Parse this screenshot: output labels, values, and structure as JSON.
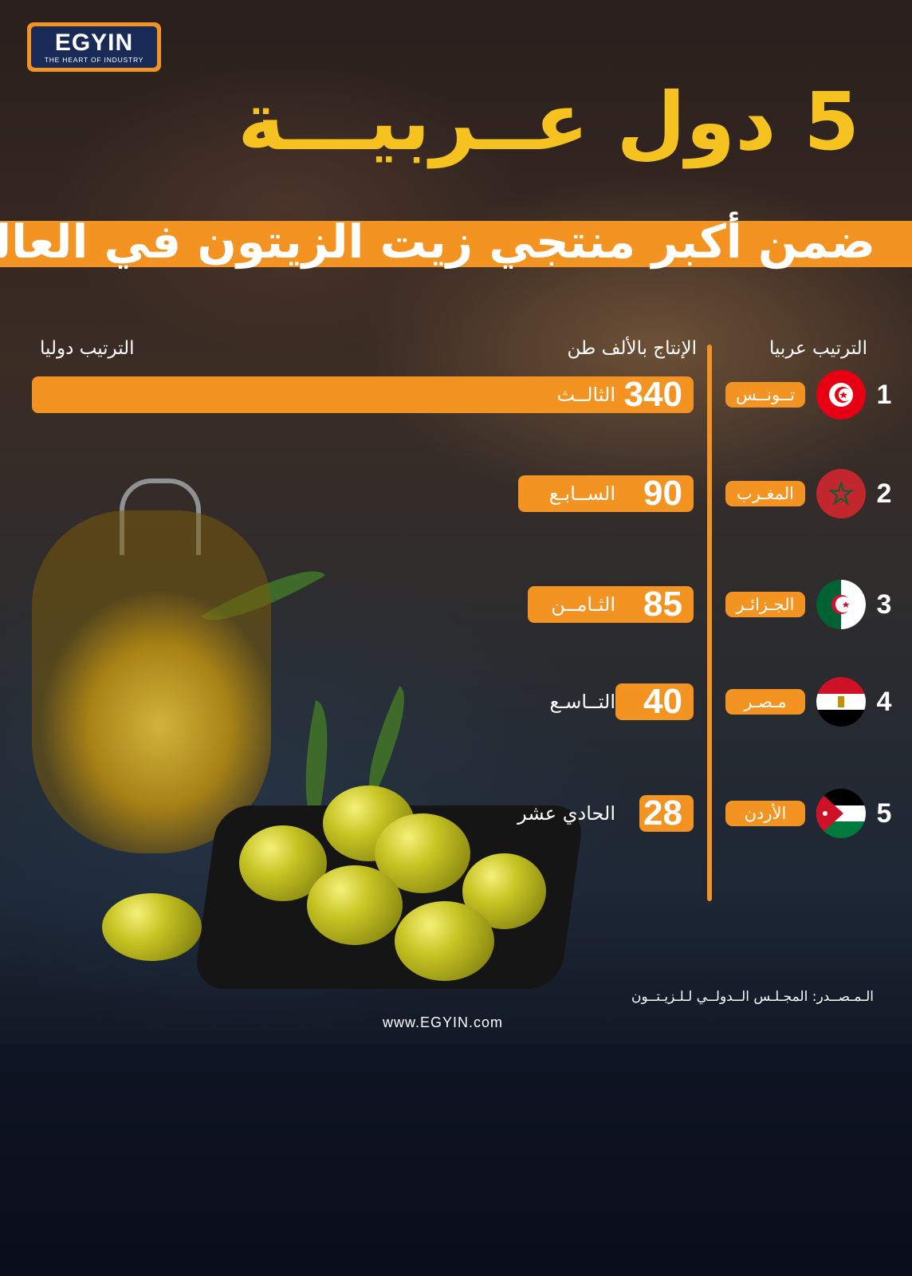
{
  "brand": {
    "name": "EGYIN",
    "tagline": "THE HEART OF INDUSTRY",
    "website": "www.EGYIN.com"
  },
  "title": {
    "line1": "5 دول عــربيـــة",
    "line2": "ضمن أكبر منتجي زيت الزيتون في العالم"
  },
  "columns": {
    "global_rank": "الترتيب دوليا",
    "production": "الإنتاج بالألف طن",
    "arab_rank": "الترتيب عربيا"
  },
  "source": "الـمـصــدر: المجـلـس الــدولــي لـلـزيـتــون",
  "colors": {
    "accent": "#f29322",
    "title_yellow": "#f5c21f",
    "brand_navy": "#1a2a56"
  },
  "chart_data": {
    "type": "bar",
    "orientation": "horizontal",
    "unit": "ألف طن",
    "xlim": [
      0,
      340
    ],
    "categories": [
      "تــونــس",
      "المغـرب",
      "الجـزائـر",
      "مـصـر",
      "الأردن"
    ],
    "values": [
      340,
      90,
      85,
      40,
      28
    ],
    "arab_rank": [
      "1",
      "2",
      "3",
      "4",
      "5"
    ],
    "global_rank": [
      "الثالــث",
      "الســابـع",
      "الثـامــن",
      "التــاسـع",
      "الحادي عشر"
    ],
    "flags": [
      "tunisia-flag",
      "morocco-flag",
      "algeria-flag",
      "egypt-flag",
      "jordan-flag"
    ]
  }
}
